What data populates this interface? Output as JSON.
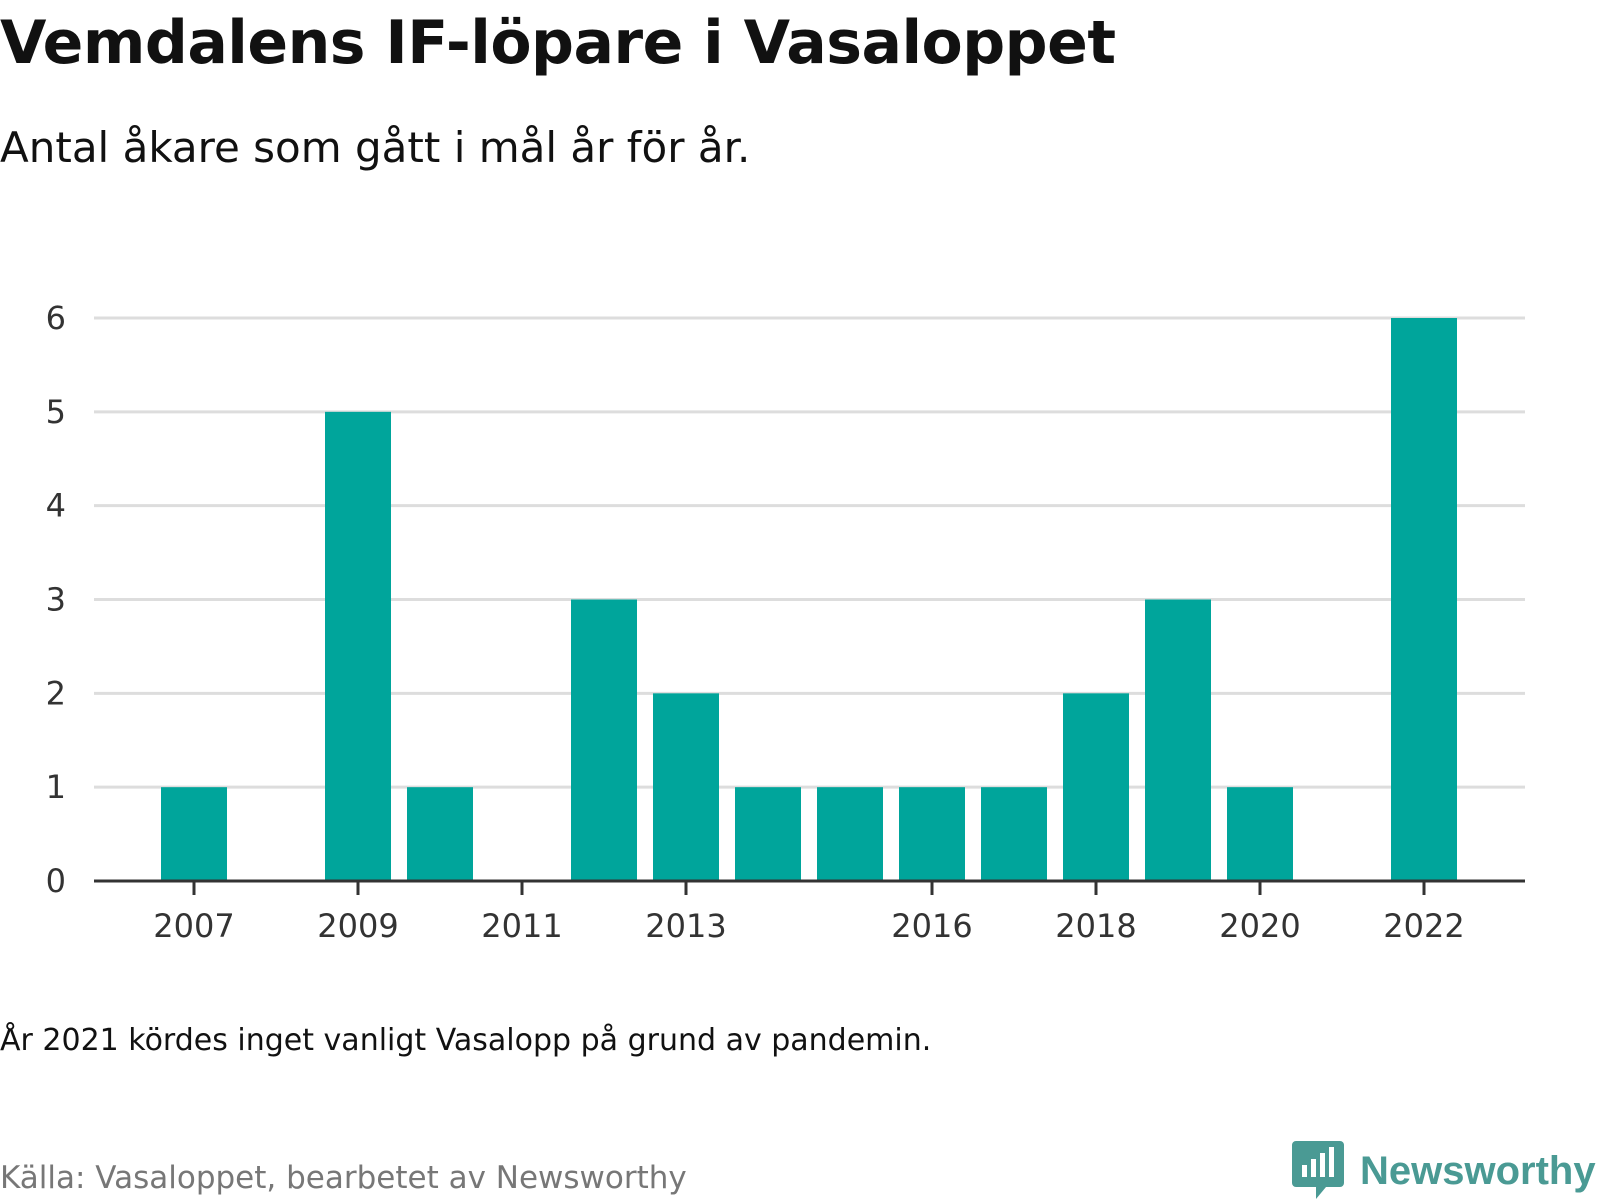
{
  "title": "Vemdalens IF-löpare i Vasaloppet",
  "subtitle": "Antal åkare som gått i mål år för år.",
  "note": "År 2021 kördes inget vanligt Vasalopp på grund av pandemin.",
  "source": "Källa: Vasaloppet, bearbetet av Newsworthy",
  "brand": {
    "name": "Newsworthy",
    "icon": "newsworthy-logo-icon",
    "color": "#4a9a94"
  },
  "colors": {
    "bar": "#00a59b",
    "grid": "#dddddd",
    "axis": "#333333",
    "tick_text": "#333333"
  },
  "chart_data": {
    "type": "bar",
    "categories": [
      "2007",
      "2008",
      "2009",
      "2010",
      "2011",
      "2012",
      "2013",
      "2014",
      "2015",
      "2016",
      "2017",
      "2018",
      "2019",
      "2020",
      "2021",
      "2022"
    ],
    "values": [
      1,
      0,
      5,
      1,
      0,
      3,
      2,
      1,
      1,
      1,
      1,
      2,
      3,
      1,
      0,
      6
    ],
    "x_tick_labels": [
      "2007",
      "2009",
      "2011",
      "2013",
      "2016",
      "2018",
      "2020",
      "2022"
    ],
    "y_ticks": [
      0,
      1,
      2,
      3,
      4,
      5,
      6
    ],
    "ylim": [
      0,
      6
    ],
    "xlabel": "",
    "ylabel": "",
    "grid": true,
    "legend": false
  }
}
